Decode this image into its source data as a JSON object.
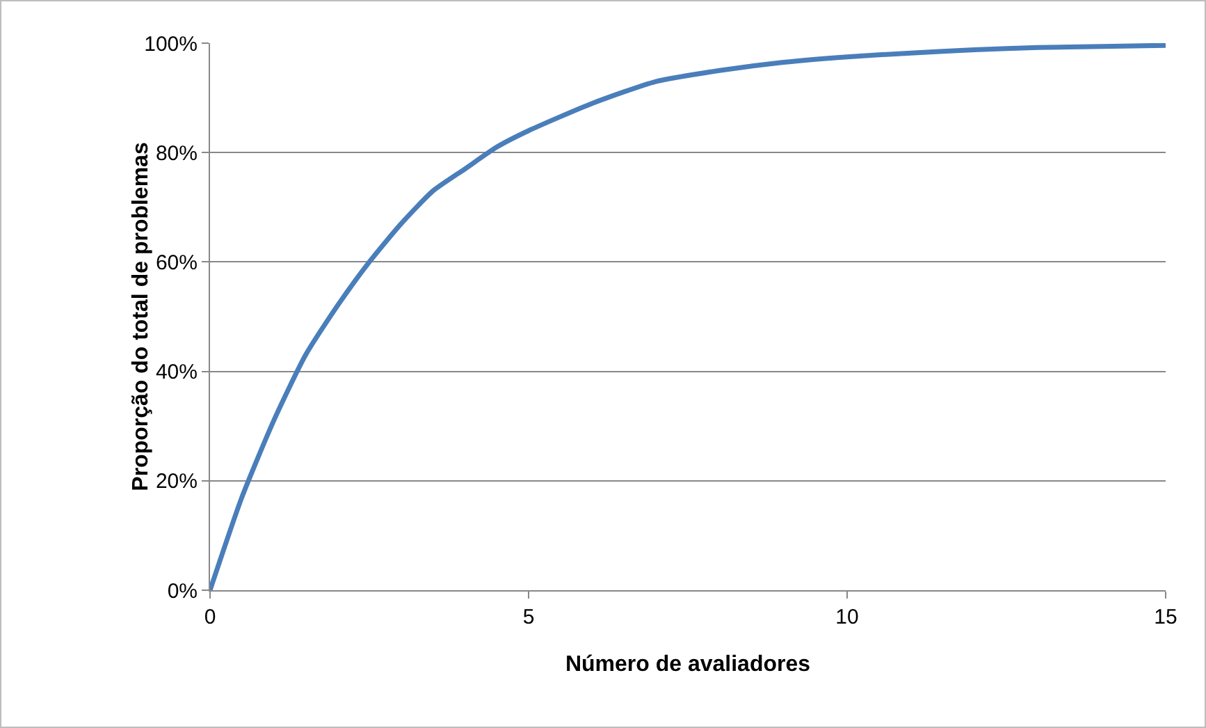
{
  "chart_data": {
    "type": "line",
    "xlabel": "Número de avaliadores",
    "ylabel": "Proporção do total de problemas",
    "x": [
      0,
      0.5,
      1,
      1.5,
      2,
      2.5,
      3,
      3.5,
      4,
      4.5,
      5,
      6,
      7,
      8,
      9,
      10,
      11,
      12,
      13,
      14,
      15
    ],
    "series": [
      {
        "color": "#4a7ebb",
        "values": [
          0,
          17,
          31,
          43,
          52,
          60,
          67,
          73,
          77,
          81,
          84,
          89,
          93,
          95,
          96.5,
          97.5,
          98.2,
          98.8,
          99.2,
          99.4,
          99.6
        ]
      }
    ],
    "xlim": [
      0,
      15
    ],
    "xticks": [
      0,
      5,
      10,
      15
    ],
    "ylim": [
      0,
      100
    ],
    "yticks": [
      {
        "value": 0,
        "label": "0%"
      },
      {
        "value": 20,
        "label": "20%"
      },
      {
        "value": 40,
        "label": "40%"
      },
      {
        "value": 60,
        "label": "60%"
      },
      {
        "value": 80,
        "label": "80%"
      },
      {
        "value": 100,
        "label": "100%"
      }
    ],
    "grid": "y",
    "marker": "none",
    "line_style": "solid"
  }
}
